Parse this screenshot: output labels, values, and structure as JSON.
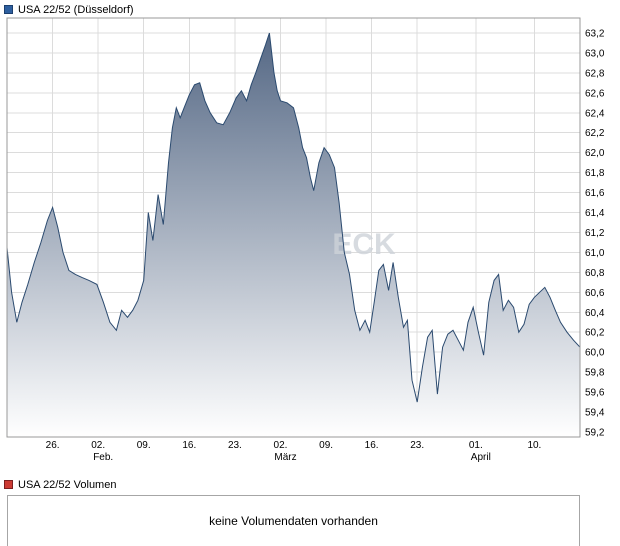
{
  "chart": {
    "title": "USA 22/52 (Düsseldorf)",
    "legend_color": "#2e5f9f",
    "legend_border": "#1c3f6e"
  },
  "volume": {
    "title": "USA 22/52 Volumen",
    "legend_color": "#cc3a33",
    "legend_border": "#7c1f1f",
    "message": "keine Volumendaten vorhanden"
  },
  "chart_data": {
    "type": "area",
    "title": "USA 22/52 (Düsseldorf)",
    "series_name": "USA 22/52",
    "xlabel": "",
    "ylabel": "",
    "grid": true,
    "legend_position": "top-left",
    "watermark": "ECK",
    "y_range": [
      59.15,
      63.35
    ],
    "y_ticks": [
      59.2,
      59.4,
      59.6,
      59.8,
      60.0,
      60.2,
      60.4,
      60.6,
      60.8,
      61.0,
      61.2,
      61.4,
      61.6,
      61.8,
      62.0,
      62.2,
      62.4,
      62.6,
      62.8,
      63.0,
      63.2
    ],
    "x_range_days": [
      0,
      88
    ],
    "x_ticks": [
      {
        "day": 7,
        "label": "26.",
        "month": ""
      },
      {
        "day": 14,
        "label": "02.",
        "month": "Feb."
      },
      {
        "day": 21,
        "label": "09.",
        "month": ""
      },
      {
        "day": 28,
        "label": "16.",
        "month": ""
      },
      {
        "day": 35,
        "label": "23.",
        "month": ""
      },
      {
        "day": 42,
        "label": "02.",
        "month": "März"
      },
      {
        "day": 49,
        "label": "09.",
        "month": ""
      },
      {
        "day": 56,
        "label": "16.",
        "month": ""
      },
      {
        "day": 63,
        "label": "23.",
        "month": ""
      },
      {
        "day": 72,
        "label": "01.",
        "month": "April"
      },
      {
        "day": 81,
        "label": "10.",
        "month": ""
      }
    ],
    "points": [
      [
        0,
        61.05
      ],
      [
        0.7,
        60.6
      ],
      [
        1.5,
        60.3
      ],
      [
        2.3,
        60.5
      ],
      [
        3.2,
        60.68
      ],
      [
        4.2,
        60.9
      ],
      [
        5.2,
        61.1
      ],
      [
        6.2,
        61.32
      ],
      [
        7,
        61.45
      ],
      [
        7.8,
        61.25
      ],
      [
        8.6,
        61.0
      ],
      [
        9.5,
        60.82
      ],
      [
        10.5,
        60.78
      ],
      [
        11.5,
        60.75
      ],
      [
        12.6,
        60.72
      ],
      [
        13.8,
        60.68
      ],
      [
        14.8,
        60.5
      ],
      [
        15.8,
        60.3
      ],
      [
        16.8,
        60.22
      ],
      [
        17.6,
        60.42
      ],
      [
        18.5,
        60.35
      ],
      [
        19.3,
        60.42
      ],
      [
        20.1,
        60.52
      ],
      [
        21,
        60.72
      ],
      [
        21.7,
        61.4
      ],
      [
        22.4,
        61.12
      ],
      [
        23.2,
        61.58
      ],
      [
        24,
        61.28
      ],
      [
        24.8,
        61.9
      ],
      [
        25.4,
        62.25
      ],
      [
        26,
        62.45
      ],
      [
        26.6,
        62.35
      ],
      [
        27.2,
        62.45
      ],
      [
        28,
        62.58
      ],
      [
        28.8,
        62.68
      ],
      [
        29.6,
        62.7
      ],
      [
        30.4,
        62.52
      ],
      [
        31.2,
        62.4
      ],
      [
        32.2,
        62.3
      ],
      [
        33.2,
        62.28
      ],
      [
        34.2,
        62.4
      ],
      [
        35.2,
        62.55
      ],
      [
        36,
        62.62
      ],
      [
        36.8,
        62.52
      ],
      [
        37.5,
        62.68
      ],
      [
        38.2,
        62.8
      ],
      [
        39,
        62.95
      ],
      [
        39.7,
        63.08
      ],
      [
        40.3,
        63.2
      ],
      [
        41,
        62.8
      ],
      [
        41.5,
        62.62
      ],
      [
        42,
        62.52
      ],
      [
        43,
        62.5
      ],
      [
        44,
        62.45
      ],
      [
        44.8,
        62.25
      ],
      [
        45.4,
        62.05
      ],
      [
        46,
        61.95
      ],
      [
        46.6,
        61.75
      ],
      [
        47.1,
        61.62
      ],
      [
        47.9,
        61.9
      ],
      [
        48.7,
        62.05
      ],
      [
        49.5,
        61.98
      ],
      [
        50.3,
        61.85
      ],
      [
        51,
        61.5
      ],
      [
        51.8,
        61.0
      ],
      [
        52.6,
        60.78
      ],
      [
        53.4,
        60.42
      ],
      [
        54.2,
        60.22
      ],
      [
        55,
        60.32
      ],
      [
        55.7,
        60.2
      ],
      [
        56.4,
        60.5
      ],
      [
        57.1,
        60.82
      ],
      [
        57.8,
        60.88
      ],
      [
        58.6,
        60.62
      ],
      [
        59.3,
        60.9
      ],
      [
        60.1,
        60.55
      ],
      [
        60.9,
        60.25
      ],
      [
        61.5,
        60.32
      ],
      [
        62.2,
        59.72
      ],
      [
        63,
        59.5
      ],
      [
        63.8,
        59.85
      ],
      [
        64.6,
        60.15
      ],
      [
        65.3,
        60.22
      ],
      [
        66.1,
        59.58
      ],
      [
        66.9,
        60.05
      ],
      [
        67.7,
        60.18
      ],
      [
        68.5,
        60.22
      ],
      [
        69.3,
        60.12
      ],
      [
        70.1,
        60.02
      ],
      [
        70.8,
        60.3
      ],
      [
        71.6,
        60.45
      ],
      [
        72.4,
        60.2
      ],
      [
        73.2,
        59.97
      ],
      [
        74,
        60.5
      ],
      [
        74.8,
        60.72
      ],
      [
        75.5,
        60.78
      ],
      [
        76.2,
        60.42
      ],
      [
        77,
        60.52
      ],
      [
        77.8,
        60.45
      ],
      [
        78.6,
        60.2
      ],
      [
        79.4,
        60.28
      ],
      [
        80.2,
        60.48
      ],
      [
        81,
        60.55
      ],
      [
        81.8,
        60.6
      ],
      [
        82.6,
        60.65
      ],
      [
        83.4,
        60.55
      ],
      [
        84.2,
        60.42
      ],
      [
        85,
        60.3
      ],
      [
        86,
        60.2
      ],
      [
        87,
        60.12
      ],
      [
        88,
        60.05
      ]
    ],
    "colors": {
      "line": "#2b4a6f",
      "fill_top": "#4e6280",
      "fill_bottom": "#ffffff",
      "grid": "#dcdcdc",
      "border": "#999999",
      "axis_text": "#000000",
      "watermark": "#ced3d9"
    }
  }
}
